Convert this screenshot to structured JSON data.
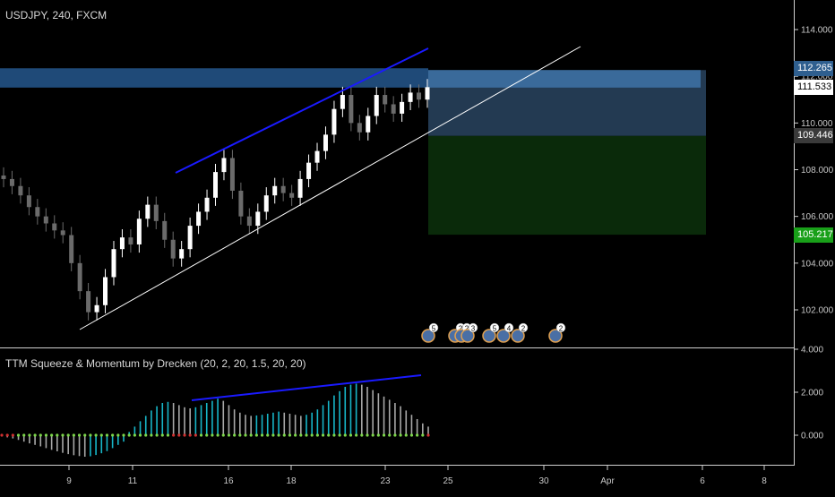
{
  "chart": {
    "symbol": "USDJPY, 240, FXCM",
    "indicator_title": "TTM Squeeze & Momentum by Drecken (20, 2, 20, 1.5, 20, 20)",
    "price_ticks": [
      "114.000",
      "112.000",
      "110.000",
      "108.000",
      "106.000",
      "104.000",
      "102.000"
    ],
    "indicator_ticks": [
      "4.000",
      "2.000",
      "0.000"
    ],
    "x_ticks": [
      "9",
      "11",
      "16",
      "18",
      "23",
      "25",
      "30",
      "Apr",
      "6",
      "8"
    ],
    "badges": {
      "top": "112.265",
      "current": "111.533",
      "entry": "109.446",
      "stop": "105.217"
    },
    "event_counts": [
      "5",
      "2",
      "2",
      "3",
      "5",
      "4",
      "2",
      "2"
    ],
    "colors": {
      "background": "#000000",
      "candle_up": "#ffffff",
      "candle_down": "#6b6b6b",
      "channel_line": "#ffffff",
      "trend_line": "#1a1aff",
      "target_zone": "#2f5f8f",
      "profit_zone": "#0a2a0a",
      "hist_cyan": "#17b6c8",
      "hist_grey": "#a8a8a8",
      "squeeze_dot_green": "#7cd64a",
      "squeeze_dot_red": "#d03030"
    }
  },
  "chart_data": {
    "type": "candlestick",
    "title": "USDJPY, 240, FXCM",
    "ylim": [
      101.0,
      115.2
    ],
    "y_ticks": [
      102,
      104,
      106,
      108,
      110,
      112,
      114
    ],
    "x_labels": [
      "9",
      "11",
      "16",
      "18",
      "23",
      "25",
      "30",
      "Apr",
      "6",
      "8"
    ],
    "close_approx": [
      107.6,
      107.3,
      106.9,
      106.4,
      106.0,
      105.7,
      105.4,
      105.2,
      104.0,
      102.8,
      101.9,
      102.2,
      103.4,
      104.6,
      105.1,
      104.8,
      105.9,
      106.5,
      105.8,
      105.0,
      104.2,
      104.6,
      105.6,
      106.2,
      106.8,
      107.9,
      108.5,
      107.1,
      106.0,
      105.6,
      106.2,
      106.9,
      107.3,
      107.0,
      106.8,
      107.6,
      108.3,
      108.8,
      109.5,
      110.6,
      111.2,
      110.0,
      109.6,
      110.3,
      111.2,
      110.8,
      110.4,
      110.9,
      111.3,
      111.0,
      111.533
    ],
    "target_zone": [
      109.446,
      112.265
    ],
    "profit_zone": [
      105.217,
      109.446
    ],
    "indicator": {
      "name": "TTM Squeeze & Momentum by Drecken (20, 2, 20, 1.5, 20, 20)",
      "ylim": [
        -1.2,
        4.2
      ],
      "y_ticks": [
        0,
        2,
        4
      ],
      "momentum": [
        -0.05,
        -0.1,
        -0.15,
        -0.22,
        -0.3,
        -0.38,
        -0.45,
        -0.52,
        -0.6,
        -0.68,
        -0.75,
        -0.82,
        -0.88,
        -0.93,
        -0.97,
        -1.0,
        -0.98,
        -0.92,
        -0.84,
        -0.74,
        -0.6,
        -0.45,
        -0.3,
        0.15,
        0.4,
        0.65,
        0.9,
        1.15,
        1.35,
        1.5,
        1.55,
        1.5,
        1.4,
        1.3,
        1.25,
        1.3,
        1.4,
        1.5,
        1.6,
        1.7,
        1.6,
        1.4,
        1.2,
        1.05,
        0.95,
        0.9,
        0.92,
        0.95,
        1.0,
        1.05,
        1.1,
        1.05,
        1.0,
        0.95,
        0.9,
        0.95,
        1.05,
        1.2,
        1.4,
        1.6,
        1.85,
        2.05,
        2.25,
        2.35,
        2.4,
        2.35,
        2.25,
        2.1,
        1.95,
        1.8,
        1.65,
        1.5,
        1.35,
        1.15,
        0.95,
        0.75,
        0.55,
        0.4
      ]
    }
  }
}
